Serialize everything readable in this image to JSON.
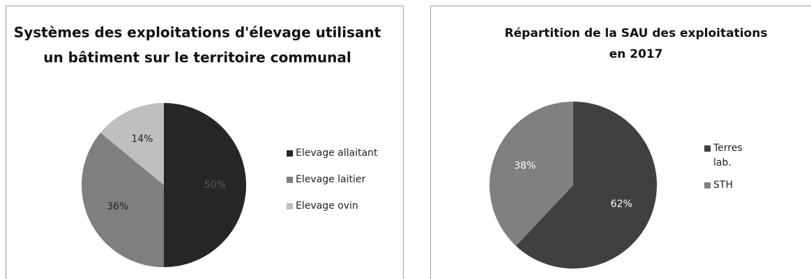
{
  "chart_data": [
    {
      "type": "pie",
      "title": [
        "Systèmes des exploitations d'élevage utilisant",
        "un bâtiment sur le territoire communal"
      ],
      "categories": [
        "Elevage allaitant",
        "Elevage laitier",
        "Elevage ovin"
      ],
      "values": [
        50,
        36,
        14
      ],
      "value_labels": [
        "50%",
        "36%",
        "14%"
      ],
      "colors": [
        "#262626",
        "#7f7f7f",
        "#bfbfbf"
      ],
      "legend": "right"
    },
    {
      "type": "pie",
      "title": [
        "Répartition de la SAU des exploitations",
        "en 2017"
      ],
      "categories": [
        "Terres lab.",
        "STH"
      ],
      "values": [
        62,
        38
      ],
      "value_labels": [
        "62%",
        "38%"
      ],
      "colors": [
        "#404040",
        "#808080"
      ],
      "legend": "right"
    }
  ]
}
